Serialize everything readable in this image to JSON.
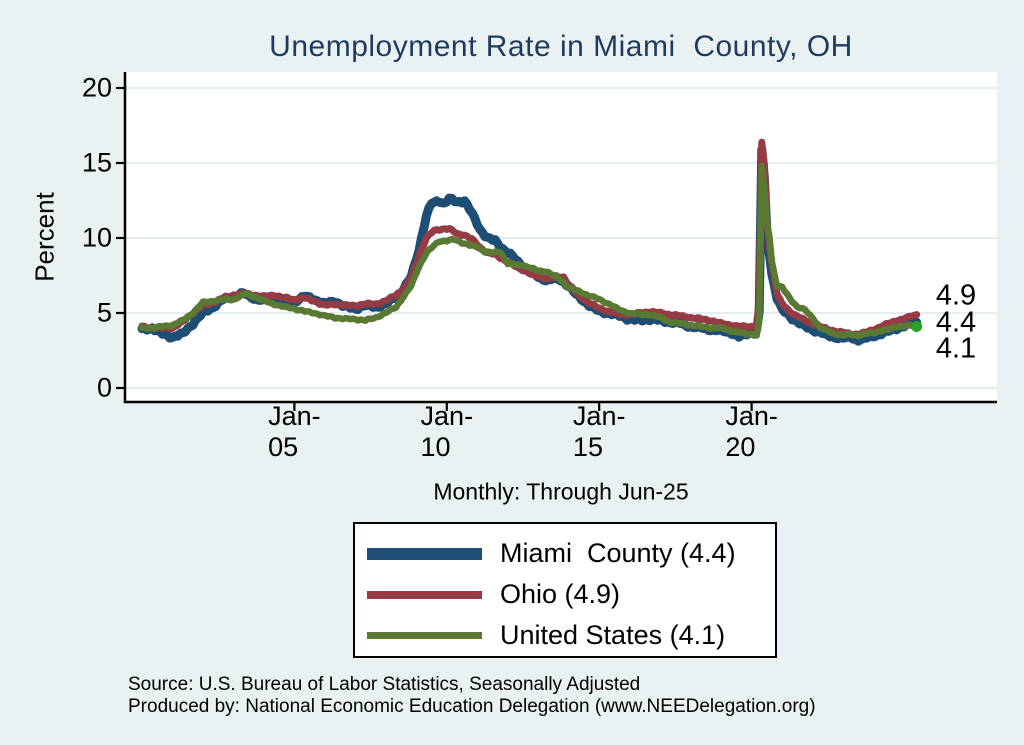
{
  "title": "Unemployment Rate in Miami  County, OH",
  "subtitle": "Monthly: Through Jun-25",
  "ylabel": "Percent",
  "end_labels": [
    "4.9",
    "4.4",
    "4.1"
  ],
  "source_line1": "Source: U.S. Bureau of Labor Statistics, Seasonally Adjusted",
  "source_line2": "Produced by: National Economic Education Delegation (www.NEEDelegation.org)",
  "colors": {
    "page_background": "#e9f1f3",
    "plot_background": "#ffffff",
    "gridline": "#dce9ec",
    "axis": "#000000",
    "title_text": "#1e3a5f",
    "miami_county": "#1f4e74",
    "ohio": "#963b44",
    "united_states": "#5a7a33",
    "end_marker": "#2ba12b"
  },
  "legend": {
    "items": [
      {
        "label": "Miami  County (4.4)",
        "color": "#1f4e74",
        "swatch_height": 12
      },
      {
        "label": "Ohio (4.9)",
        "color": "#963b44",
        "swatch_height": 8
      },
      {
        "label": "United States (4.1)",
        "color": "#5a7a33",
        "swatch_height": 7
      }
    ]
  },
  "chart_data": {
    "type": "line",
    "title": "Unemployment Rate in Miami  County, OH",
    "subtitle": "Monthly: Through Jun-25",
    "xlabel": "",
    "ylabel": "Percent",
    "ylim": [
      0,
      20
    ],
    "y_ticks": [
      0,
      5,
      10,
      15,
      20
    ],
    "grid": true,
    "legend_position": "bottom",
    "x_start": "Jan-2000",
    "x_end": "Jun-2025",
    "months_total": 306,
    "x_ticks": [
      {
        "label": "Jan-05",
        "month_index": 60
      },
      {
        "label": "Jan-10",
        "month_index": 120
      },
      {
        "label": "Jan-15",
        "month_index": 180
      },
      {
        "label": "Jan-20",
        "month_index": 240
      }
    ],
    "note": "anchors are [month_index_from_Jan-2000, percent] estimated from plot; monthly values linearly interpolated",
    "series": [
      {
        "name": "Miami  County",
        "current_value": 4.4,
        "color": "#1f4e74",
        "stroke_width": 9,
        "noise_amp": 0.13,
        "anchors": [
          [
            0,
            3.9
          ],
          [
            4,
            4.0
          ],
          [
            8,
            3.6
          ],
          [
            12,
            3.4
          ],
          [
            16,
            3.6
          ],
          [
            20,
            4.3
          ],
          [
            24,
            5.0
          ],
          [
            28,
            5.4
          ],
          [
            32,
            5.9
          ],
          [
            36,
            6.1
          ],
          [
            40,
            6.3
          ],
          [
            44,
            6.0
          ],
          [
            48,
            5.8
          ],
          [
            52,
            6.1
          ],
          [
            56,
            5.9
          ],
          [
            60,
            5.8
          ],
          [
            64,
            6.1
          ],
          [
            68,
            5.9
          ],
          [
            72,
            5.6
          ],
          [
            76,
            5.8
          ],
          [
            80,
            5.4
          ],
          [
            84,
            5.3
          ],
          [
            88,
            5.5
          ],
          [
            92,
            5.4
          ],
          [
            96,
            5.6
          ],
          [
            100,
            6.1
          ],
          [
            103,
            6.6
          ],
          [
            106,
            7.4
          ],
          [
            109,
            9.2
          ],
          [
            112,
            11.5
          ],
          [
            114,
            12.3
          ],
          [
            117,
            12.5
          ],
          [
            119,
            12.3
          ],
          [
            121,
            12.6
          ],
          [
            124,
            12.4
          ],
          [
            127,
            12.5
          ],
          [
            130,
            11.6
          ],
          [
            133,
            10.6
          ],
          [
            136,
            10.0
          ],
          [
            139,
            9.8
          ],
          [
            142,
            9.3
          ],
          [
            145,
            8.9
          ],
          [
            148,
            8.4
          ],
          [
            151,
            8.0
          ],
          [
            154,
            7.6
          ],
          [
            157,
            7.3
          ],
          [
            160,
            7.2
          ],
          [
            163,
            7.3
          ],
          [
            166,
            7.1
          ],
          [
            168,
            6.8
          ],
          [
            171,
            6.2
          ],
          [
            174,
            5.8
          ],
          [
            177,
            5.4
          ],
          [
            180,
            5.1
          ],
          [
            184,
            5.0
          ],
          [
            188,
            4.8
          ],
          [
            192,
            4.6
          ],
          [
            196,
            4.5
          ],
          [
            200,
            4.6
          ],
          [
            204,
            4.5
          ],
          [
            208,
            4.4
          ],
          [
            212,
            4.3
          ],
          [
            216,
            4.1
          ],
          [
            220,
            4.0
          ],
          [
            224,
            3.9
          ],
          [
            228,
            3.8
          ],
          [
            232,
            3.7
          ],
          [
            235,
            3.4
          ],
          [
            238,
            3.6
          ],
          [
            240,
            3.7
          ],
          [
            242,
            3.9
          ],
          [
            243,
            5.0
          ],
          [
            244,
            15.9
          ],
          [
            245,
            14.0
          ],
          [
            246,
            10.5
          ],
          [
            247,
            9.0
          ],
          [
            248,
            7.6
          ],
          [
            250,
            6.0
          ],
          [
            252,
            5.2
          ],
          [
            255,
            4.8
          ],
          [
            258,
            4.4
          ],
          [
            261,
            4.1
          ],
          [
            264,
            3.9
          ],
          [
            267,
            3.7
          ],
          [
            270,
            3.5
          ],
          [
            273,
            3.4
          ],
          [
            276,
            3.3
          ],
          [
            279,
            3.4
          ],
          [
            282,
            3.2
          ],
          [
            285,
            3.3
          ],
          [
            288,
            3.5
          ],
          [
            291,
            3.6
          ],
          [
            294,
            3.8
          ],
          [
            297,
            4.0
          ],
          [
            300,
            4.1
          ],
          [
            303,
            4.3
          ],
          [
            305,
            4.4
          ]
        ]
      },
      {
        "name": "Ohio",
        "current_value": 4.9,
        "color": "#963b44",
        "stroke_width": 7,
        "noise_amp": 0.07,
        "anchors": [
          [
            0,
            4.1
          ],
          [
            4,
            4.0
          ],
          [
            8,
            4.0
          ],
          [
            12,
            4.0
          ],
          [
            16,
            4.4
          ],
          [
            20,
            5.0
          ],
          [
            24,
            5.5
          ],
          [
            28,
            5.7
          ],
          [
            32,
            6.0
          ],
          [
            36,
            6.2
          ],
          [
            40,
            6.3
          ],
          [
            44,
            6.2
          ],
          [
            48,
            6.1
          ],
          [
            52,
            6.2
          ],
          [
            56,
            6.0
          ],
          [
            60,
            5.9
          ],
          [
            64,
            6.0
          ],
          [
            68,
            5.8
          ],
          [
            72,
            5.5
          ],
          [
            76,
            5.6
          ],
          [
            80,
            5.5
          ],
          [
            84,
            5.5
          ],
          [
            88,
            5.6
          ],
          [
            92,
            5.6
          ],
          [
            96,
            5.8
          ],
          [
            100,
            6.2
          ],
          [
            103,
            6.6
          ],
          [
            106,
            7.3
          ],
          [
            109,
            8.8
          ],
          [
            112,
            10.0
          ],
          [
            115,
            10.5
          ],
          [
            118,
            10.6
          ],
          [
            121,
            10.6
          ],
          [
            124,
            10.3
          ],
          [
            127,
            10.2
          ],
          [
            130,
            9.9
          ],
          [
            133,
            9.4
          ],
          [
            136,
            9.0
          ],
          [
            139,
            8.9
          ],
          [
            142,
            8.6
          ],
          [
            145,
            8.3
          ],
          [
            148,
            8.0
          ],
          [
            151,
            7.8
          ],
          [
            154,
            7.5
          ],
          [
            157,
            7.4
          ],
          [
            160,
            7.3
          ],
          [
            163,
            7.4
          ],
          [
            166,
            7.4
          ],
          [
            168,
            6.9
          ],
          [
            171,
            6.3
          ],
          [
            174,
            5.9
          ],
          [
            177,
            5.6
          ],
          [
            180,
            5.3
          ],
          [
            184,
            5.1
          ],
          [
            188,
            4.9
          ],
          [
            192,
            4.9
          ],
          [
            196,
            5.0
          ],
          [
            200,
            5.1
          ],
          [
            204,
            5.0
          ],
          [
            208,
            4.9
          ],
          [
            212,
            4.8
          ],
          [
            216,
            4.7
          ],
          [
            220,
            4.6
          ],
          [
            224,
            4.5
          ],
          [
            228,
            4.3
          ],
          [
            232,
            4.2
          ],
          [
            235,
            4.1
          ],
          [
            238,
            4.1
          ],
          [
            240,
            4.1
          ],
          [
            242,
            4.2
          ],
          [
            243,
            5.8
          ],
          [
            244,
            16.4
          ],
          [
            245,
            14.9
          ],
          [
            246,
            11.2
          ],
          [
            247,
            9.5
          ],
          [
            248,
            8.3
          ],
          [
            250,
            6.3
          ],
          [
            252,
            5.6
          ],
          [
            255,
            5.1
          ],
          [
            258,
            4.8
          ],
          [
            261,
            4.5
          ],
          [
            264,
            4.3
          ],
          [
            267,
            4.1
          ],
          [
            270,
            3.9
          ],
          [
            273,
            3.8
          ],
          [
            276,
            3.7
          ],
          [
            279,
            3.6
          ],
          [
            282,
            3.6
          ],
          [
            285,
            3.7
          ],
          [
            288,
            3.9
          ],
          [
            291,
            4.1
          ],
          [
            294,
            4.3
          ],
          [
            297,
            4.5
          ],
          [
            300,
            4.6
          ],
          [
            303,
            4.8
          ],
          [
            305,
            4.9
          ]
        ]
      },
      {
        "name": "United States",
        "current_value": 4.1,
        "color": "#5a7a33",
        "stroke_width": 6.5,
        "noise_amp": 0.07,
        "end_marker": true,
        "anchors": [
          [
            0,
            4.0
          ],
          [
            4,
            4.0
          ],
          [
            8,
            4.1
          ],
          [
            12,
            4.2
          ],
          [
            16,
            4.5
          ],
          [
            20,
            5.0
          ],
          [
            24,
            5.7
          ],
          [
            28,
            5.8
          ],
          [
            32,
            5.9
          ],
          [
            36,
            5.9
          ],
          [
            41,
            6.3
          ],
          [
            44,
            6.1
          ],
          [
            48,
            5.8
          ],
          [
            52,
            5.6
          ],
          [
            56,
            5.4
          ],
          [
            60,
            5.3
          ],
          [
            64,
            5.1
          ],
          [
            68,
            5.0
          ],
          [
            72,
            4.8
          ],
          [
            76,
            4.7
          ],
          [
            80,
            4.6
          ],
          [
            84,
            4.6
          ],
          [
            88,
            4.5
          ],
          [
            92,
            4.7
          ],
          [
            96,
            5.0
          ],
          [
            100,
            5.4
          ],
          [
            103,
            6.1
          ],
          [
            106,
            6.8
          ],
          [
            109,
            8.1
          ],
          [
            112,
            9.0
          ],
          [
            115,
            9.5
          ],
          [
            117,
            9.8
          ],
          [
            120,
            9.8
          ],
          [
            123,
            9.9
          ],
          [
            126,
            9.7
          ],
          [
            129,
            9.5
          ],
          [
            132,
            9.4
          ],
          [
            135,
            9.1
          ],
          [
            138,
            9.0
          ],
          [
            141,
            9.1
          ],
          [
            144,
            8.3
          ],
          [
            147,
            8.2
          ],
          [
            150,
            8.2
          ],
          [
            153,
            8.0
          ],
          [
            156,
            7.8
          ],
          [
            159,
            7.8
          ],
          [
            162,
            7.5
          ],
          [
            165,
            7.2
          ],
          [
            168,
            6.7
          ],
          [
            171,
            6.5
          ],
          [
            174,
            6.3
          ],
          [
            177,
            6.1
          ],
          [
            180,
            5.9
          ],
          [
            184,
            5.6
          ],
          [
            188,
            5.2
          ],
          [
            192,
            5.0
          ],
          [
            196,
            4.9
          ],
          [
            200,
            4.9
          ],
          [
            204,
            4.7
          ],
          [
            208,
            4.4
          ],
          [
            212,
            4.3
          ],
          [
            216,
            4.2
          ],
          [
            220,
            4.1
          ],
          [
            224,
            4.0
          ],
          [
            228,
            4.0
          ],
          [
            232,
            3.8
          ],
          [
            235,
            3.7
          ],
          [
            238,
            3.6
          ],
          [
            240,
            3.6
          ],
          [
            242,
            3.5
          ],
          [
            243,
            4.4
          ],
          [
            244,
            14.8
          ],
          [
            245,
            13.2
          ],
          [
            246,
            11.0
          ],
          [
            247,
            10.2
          ],
          [
            248,
            8.4
          ],
          [
            250,
            6.8
          ],
          [
            252,
            6.7
          ],
          [
            255,
            6.0
          ],
          [
            258,
            5.4
          ],
          [
            261,
            5.2
          ],
          [
            264,
            4.7
          ],
          [
            267,
            4.0
          ],
          [
            270,
            3.8
          ],
          [
            273,
            3.6
          ],
          [
            276,
            3.5
          ],
          [
            279,
            3.6
          ],
          [
            282,
            3.5
          ],
          [
            285,
            3.6
          ],
          [
            288,
            3.7
          ],
          [
            291,
            3.8
          ],
          [
            294,
            3.9
          ],
          [
            297,
            4.1
          ],
          [
            300,
            4.1
          ],
          [
            303,
            4.2
          ],
          [
            305,
            4.1
          ]
        ]
      }
    ]
  }
}
